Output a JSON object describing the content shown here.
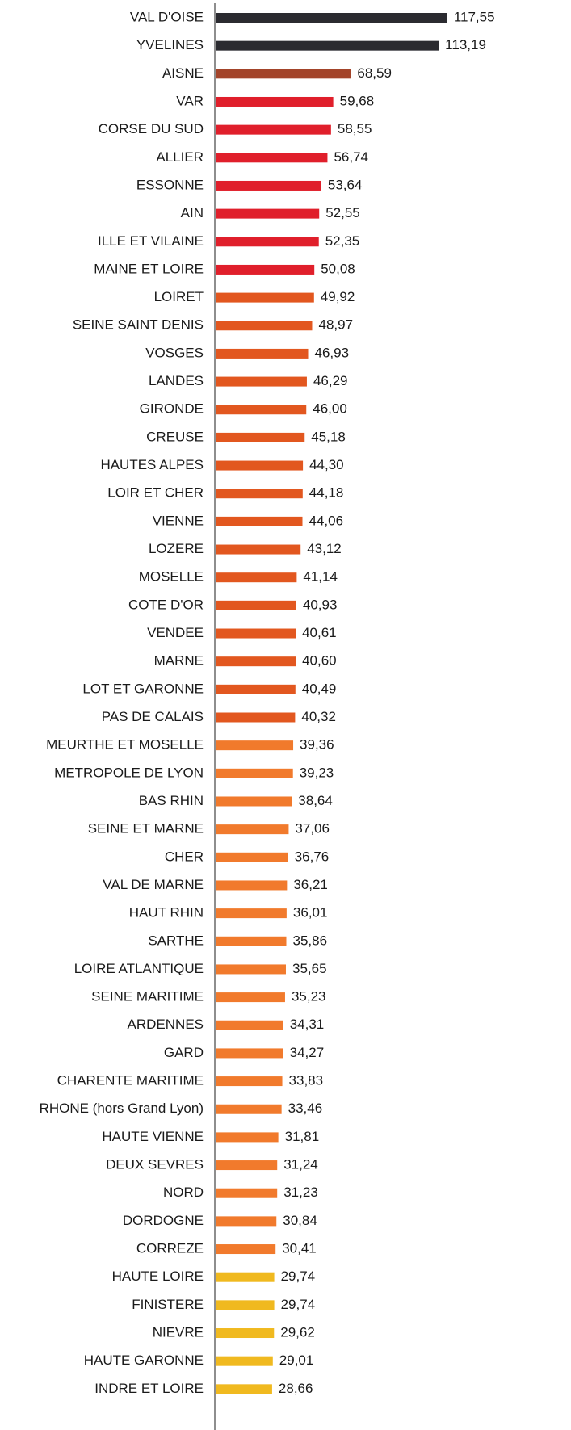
{
  "chart_data": {
    "type": "hbar",
    "categories": [
      "VAL D'OISE",
      "YVELINES",
      "AISNE",
      "VAR",
      "CORSE DU SUD",
      "ALLIER",
      "ESSONNE",
      "AIN",
      "ILLE ET VILAINE",
      "MAINE ET LOIRE",
      "LOIRET",
      "SEINE SAINT DENIS",
      "VOSGES",
      "LANDES",
      "GIRONDE",
      "CREUSE",
      "HAUTES ALPES",
      "LOIR ET CHER",
      "VIENNE",
      "LOZERE",
      "MOSELLE",
      "COTE D'OR",
      "VENDEE",
      "MARNE",
      "LOT ET GARONNE",
      "PAS DE CALAIS",
      "MEURTHE ET MOSELLE",
      "METROPOLE DE LYON",
      "BAS RHIN",
      "SEINE ET MARNE",
      "CHER",
      "VAL DE MARNE",
      "HAUT RHIN",
      "SARTHE",
      "LOIRE ATLANTIQUE",
      "SEINE MARITIME",
      "ARDENNES",
      "GARD",
      "CHARENTE MARITIME",
      "RHONE (hors Grand Lyon)",
      "HAUTE VIENNE",
      "DEUX SEVRES",
      "NORD",
      "DORDOGNE",
      "CORREZE",
      "HAUTE LOIRE",
      "FINISTERE",
      "NIEVRE",
      "HAUTE GARONNE",
      "INDRE ET LOIRE"
    ],
    "values": [
      117.55,
      113.19,
      68.59,
      59.68,
      58.55,
      56.74,
      53.64,
      52.55,
      52.35,
      50.08,
      49.92,
      48.97,
      46.93,
      46.29,
      46.0,
      45.18,
      44.3,
      44.18,
      44.06,
      43.12,
      41.14,
      40.93,
      40.61,
      40.6,
      40.49,
      40.32,
      39.36,
      39.23,
      38.64,
      37.06,
      36.76,
      36.21,
      36.01,
      35.86,
      35.65,
      35.23,
      34.31,
      34.27,
      33.83,
      33.46,
      31.81,
      31.24,
      31.23,
      30.84,
      30.41,
      29.74,
      29.74,
      29.62,
      29.01,
      28.66
    ],
    "value_labels": [
      "117,55",
      "113,19",
      "68,59",
      "59,68",
      "58,55",
      "56,74",
      "53,64",
      "52,55",
      "52,35",
      "50,08",
      "49,92",
      "48,97",
      "46,93",
      "46,29",
      "46,00",
      "45,18",
      "44,30",
      "44,18",
      "44,06",
      "43,12",
      "41,14",
      "40,93",
      "40,61",
      "40,60",
      "40,49",
      "40,32",
      "39,36",
      "39,23",
      "38,64",
      "37,06",
      "36,76",
      "36,21",
      "36,01",
      "35,86",
      "35,65",
      "35,23",
      "34,31",
      "34,27",
      "33,83",
      "33,46",
      "31,81",
      "31,24",
      "31,23",
      "30,84",
      "30,41",
      "29,74",
      "29,74",
      "29,62",
      "29,01",
      "28,66"
    ],
    "colors": [
      "#2b2b30",
      "#2b2b30",
      "#a3442a",
      "#e01f2b",
      "#e01f2b",
      "#e01f2b",
      "#e01f2b",
      "#e01f2b",
      "#e01f2b",
      "#e01f2b",
      "#e2571f",
      "#e2571f",
      "#e2571f",
      "#e2571f",
      "#e2571f",
      "#e2571f",
      "#e2571f",
      "#e2571f",
      "#e2571f",
      "#e2571f",
      "#e2571f",
      "#e2571f",
      "#e2571f",
      "#e2571f",
      "#e2571f",
      "#e2571f",
      "#f17a2c",
      "#f17a2c",
      "#f17a2c",
      "#f17a2c",
      "#f17a2c",
      "#f17a2c",
      "#f17a2c",
      "#f17a2c",
      "#f17a2c",
      "#f17a2c",
      "#f17a2c",
      "#f17a2c",
      "#f17a2c",
      "#f17a2c",
      "#f17a2c",
      "#f17a2c",
      "#f17a2c",
      "#f17a2c",
      "#f17a2c",
      "#f0b91f",
      "#f0b91f",
      "#f0b91f",
      "#f0b91f",
      "#f0b91f"
    ]
  }
}
